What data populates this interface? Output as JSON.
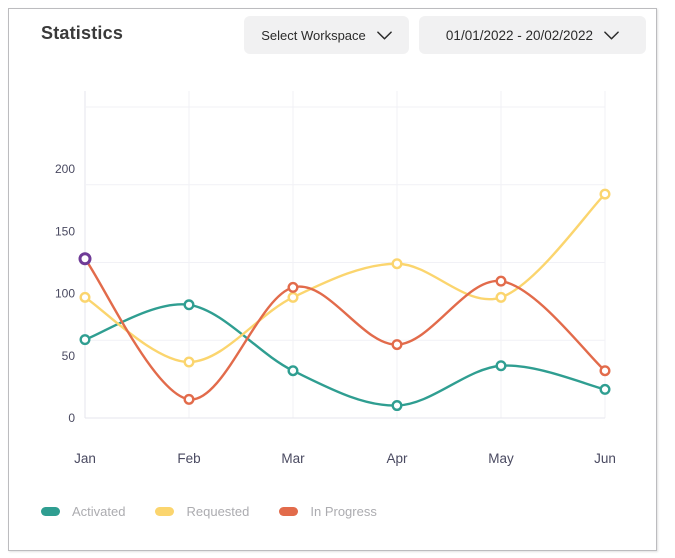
{
  "header": {
    "title": "Statistics",
    "workspace_dropdown": {
      "label": "Select Workspace",
      "icon": "chevron-down-icon"
    },
    "date_range_dropdown": {
      "label": "01/01/2022 - 20/02/2022",
      "icon": "chevron-down-icon"
    }
  },
  "chart_data": {
    "type": "line",
    "categories": [
      "Jan",
      "Feb",
      "Mar",
      "Apr",
      "May",
      "Jun"
    ],
    "series": [
      {
        "name": "Activated",
        "color": "#2f9e91",
        "values": [
          63,
          91,
          38,
          10,
          42,
          23
        ]
      },
      {
        "name": "Requested",
        "color": "#fbd56e",
        "values": [
          97,
          45,
          97,
          124,
          97,
          180
        ]
      },
      {
        "name": "In Progress",
        "color": "#e26b4b",
        "values": [
          128,
          15,
          105,
          59,
          110,
          38
        ]
      }
    ],
    "y_ticks": [
      0,
      50,
      100,
      150,
      200
    ],
    "ylim": [
      0,
      250
    ],
    "grid": true,
    "legend_position": "bottom",
    "curve": "smooth",
    "point_style": "hollow-circle",
    "highlight_point": {
      "series": "In Progress",
      "category": "Jan",
      "ring_color": "#6f3b97"
    }
  },
  "colors": {
    "grid_line": "#f1f1f6",
    "axis_line": "#e6e6ec",
    "axis_text": "#4a4a61",
    "legend_text": "#acacb0",
    "dropdown_bg": "#f1f1f2",
    "card_border": "#bcbcbf"
  }
}
